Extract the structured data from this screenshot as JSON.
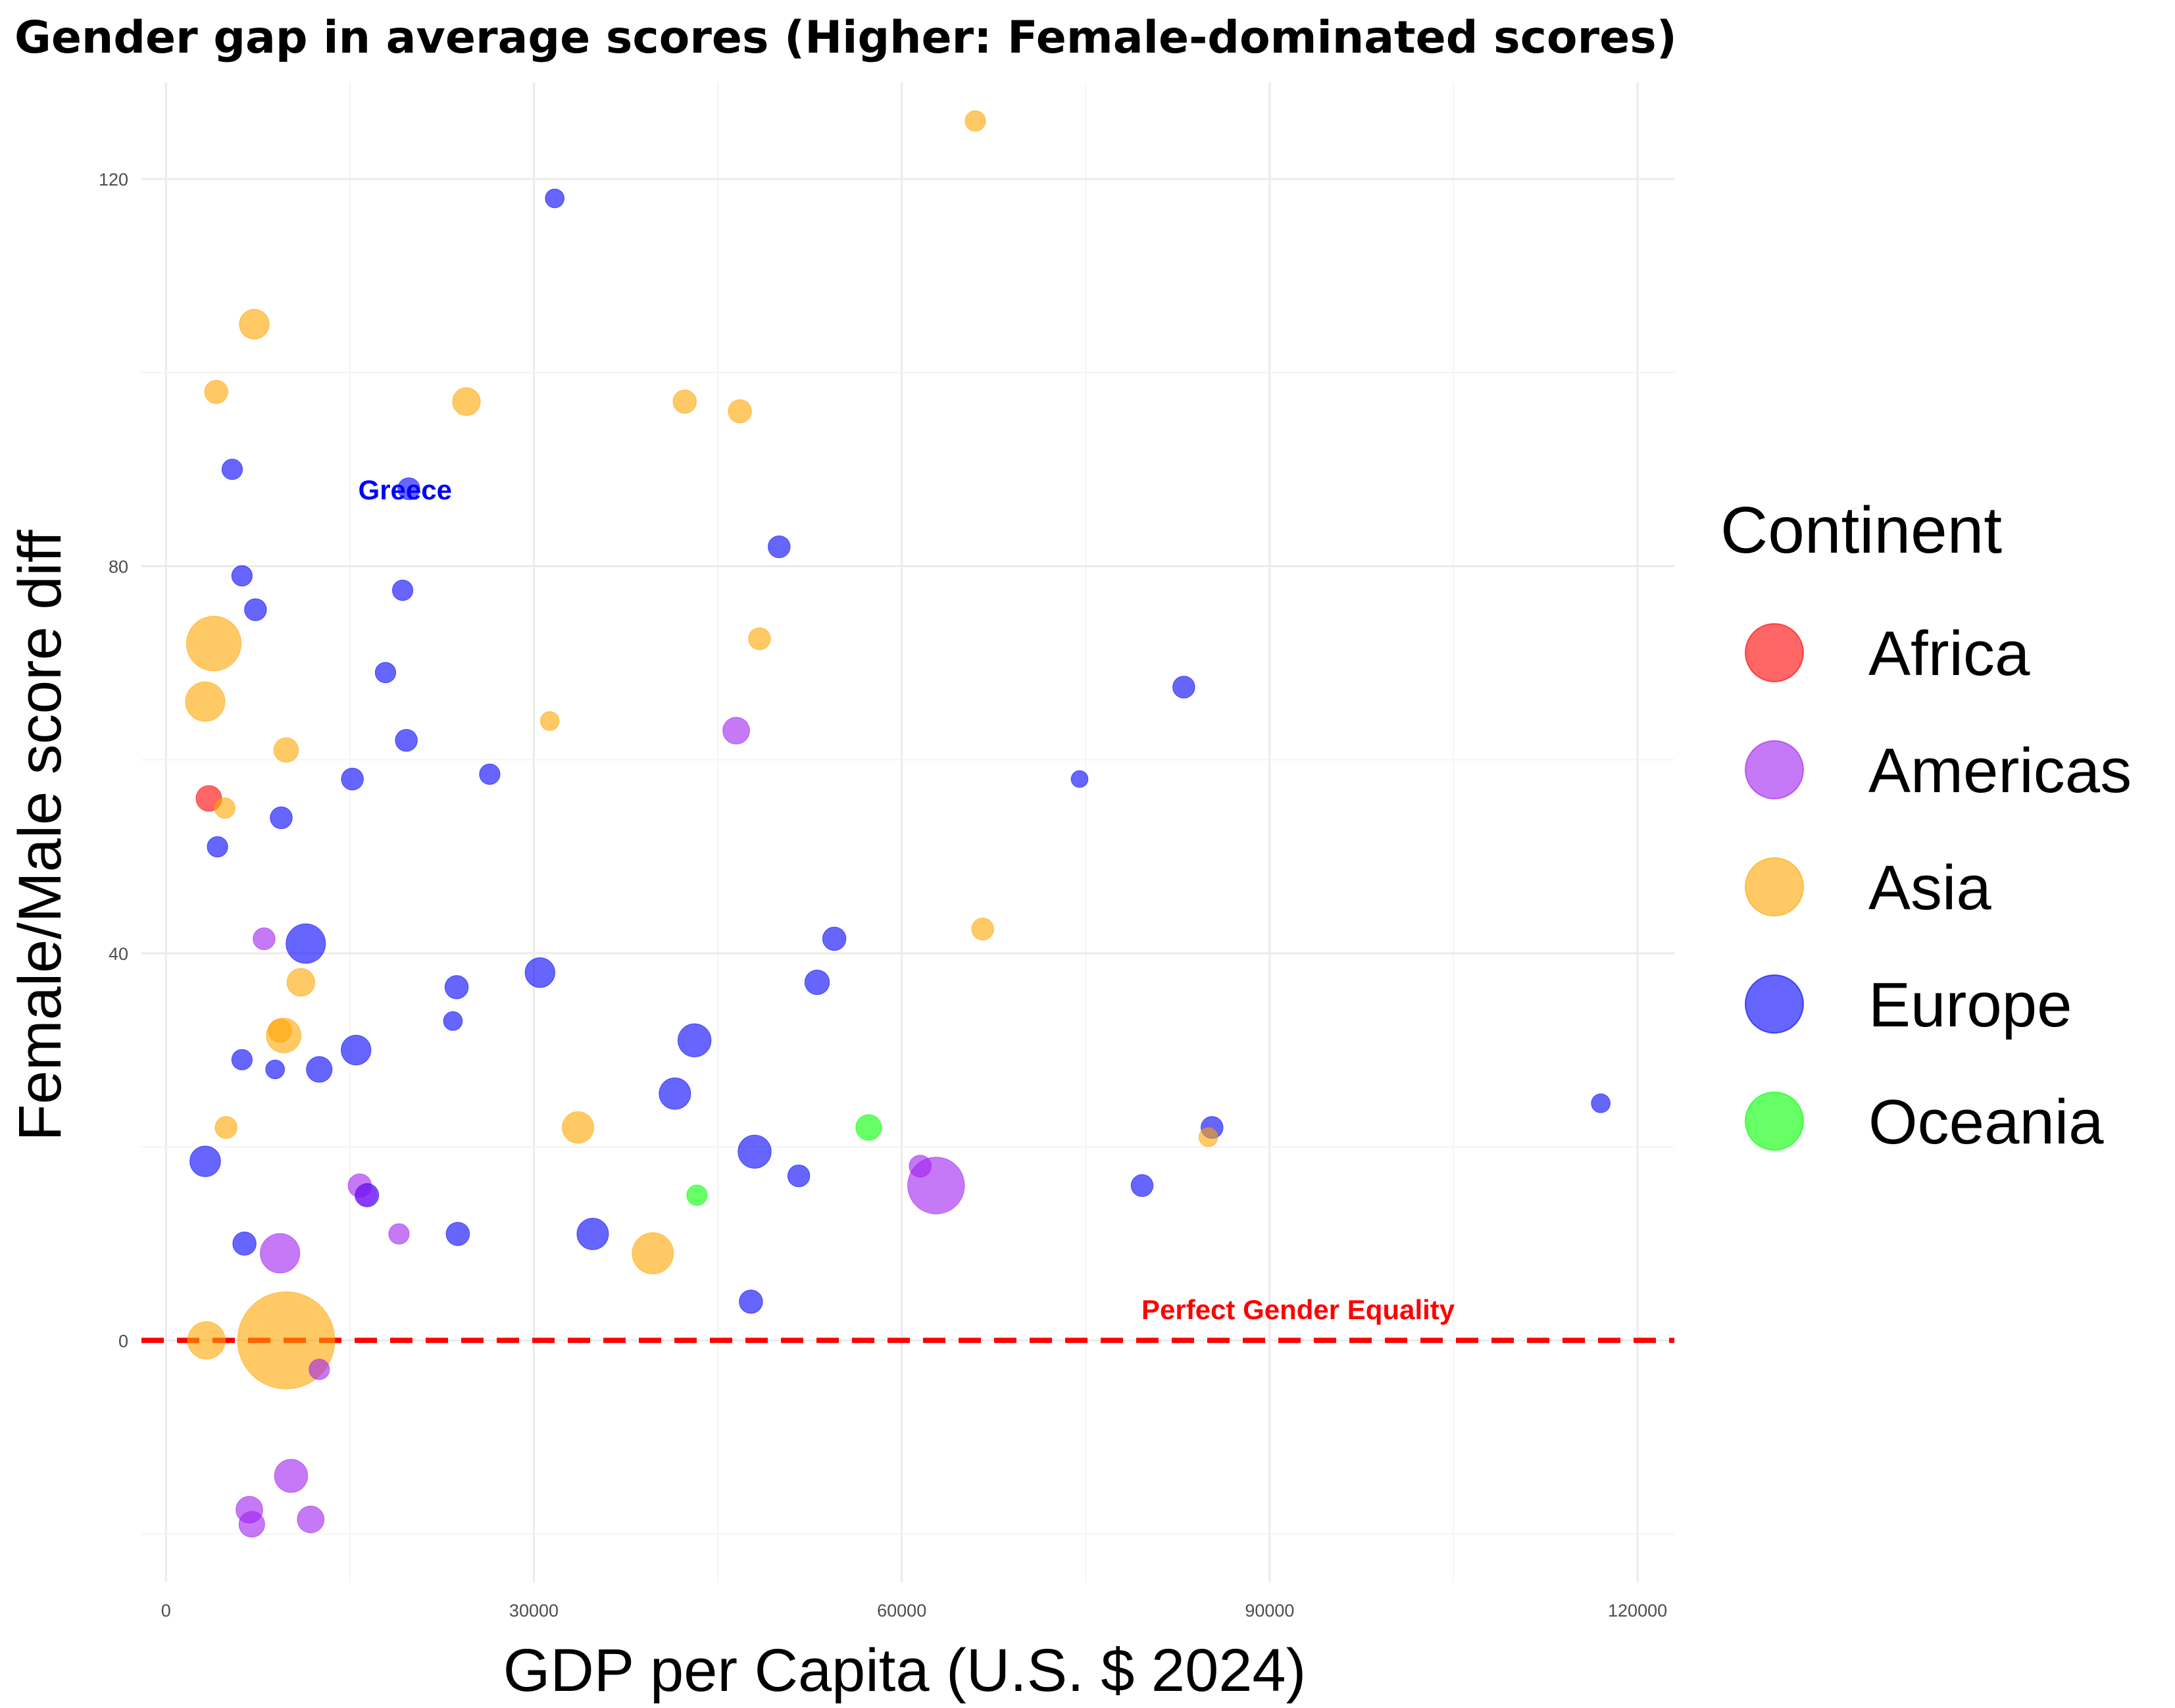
{
  "chart_data": {
    "type": "scatter",
    "title": "Gender gap in average scores (Higher: Female-dominated scores)",
    "xlabel": "GDP per Capita (U.S. $ 2024)",
    "ylabel": "Female/Male score diff",
    "xlim": [
      -2000,
      123000
    ],
    "ylim": [
      -25,
      130
    ],
    "x_ticks": [
      0,
      30000,
      60000,
      90000,
      120000
    ],
    "x_tick_labels": [
      "0",
      "30000",
      "60000",
      "90000",
      "120000"
    ],
    "y_ticks": [
      0,
      40,
      80,
      120
    ],
    "y_tick_labels": [
      "0",
      "40",
      "80",
      "120"
    ],
    "grid": true,
    "size_encoding": "bubble area, unlabeled",
    "legend": {
      "title": "Continent",
      "position": "right",
      "items": [
        {
          "label": "Africa",
          "color": "#ff0000"
        },
        {
          "label": "Americas",
          "color": "#a020f0"
        },
        {
          "label": "Asia",
          "color": "#ffa500"
        },
        {
          "label": "Europe",
          "color": "#0000ff"
        },
        {
          "label": "Oceania",
          "color": "#00ff00"
        }
      ]
    },
    "reference_line": {
      "y": 0,
      "label": "Perfect Gender Equality",
      "color": "#ff0000",
      "style": "dashed"
    },
    "annotations": [
      {
        "text": "Greece",
        "x": 19500,
        "y": 88,
        "color": "#0000ff"
      }
    ],
    "series": [
      {
        "name": "Africa",
        "color": "#ff0000",
        "points": [
          {
            "x": 3500,
            "y": 56,
            "s": 8
          }
        ]
      },
      {
        "name": "Americas",
        "color": "#a020f0",
        "points": [
          {
            "x": 8000,
            "y": 41.5,
            "s": 5
          },
          {
            "x": 15800,
            "y": 16,
            "s": 6
          },
          {
            "x": 16300,
            "y": 15,
            "s": 5
          },
          {
            "x": 19000,
            "y": 11,
            "s": 4
          },
          {
            "x": 9300,
            "y": 9,
            "s": 25
          },
          {
            "x": 12500,
            "y": -3,
            "s": 4
          },
          {
            "x": 10200,
            "y": -14,
            "s": 16
          },
          {
            "x": 6800,
            "y": -17.5,
            "s": 9
          },
          {
            "x": 7000,
            "y": -19,
            "s": 8
          },
          {
            "x": 11800,
            "y": -18.5,
            "s": 9
          },
          {
            "x": 46500,
            "y": 63,
            "s": 9
          },
          {
            "x": 61500,
            "y": 18,
            "s": 5
          },
          {
            "x": 62800,
            "y": 16,
            "s": 60
          }
        ]
      },
      {
        "name": "Asia",
        "color": "#ffa500",
        "points": [
          {
            "x": 66000,
            "y": 126,
            "s": 4
          },
          {
            "x": 7200,
            "y": 105,
            "s": 12
          },
          {
            "x": 4100,
            "y": 98,
            "s": 6
          },
          {
            "x": 24500,
            "y": 97,
            "s": 10
          },
          {
            "x": 42300,
            "y": 97,
            "s": 6
          },
          {
            "x": 46800,
            "y": 96,
            "s": 6
          },
          {
            "x": 3900,
            "y": 72,
            "s": 55
          },
          {
            "x": 48400,
            "y": 72.5,
            "s": 5
          },
          {
            "x": 3200,
            "y": 66,
            "s": 25
          },
          {
            "x": 31300,
            "y": 64,
            "s": 3
          },
          {
            "x": 9800,
            "y": 61,
            "s": 7
          },
          {
            "x": 4800,
            "y": 55,
            "s": 4
          },
          {
            "x": 66600,
            "y": 42.5,
            "s": 5
          },
          {
            "x": 11000,
            "y": 37,
            "s": 10
          },
          {
            "x": 9300,
            "y": 32,
            "s": 6
          },
          {
            "x": 9600,
            "y": 31.5,
            "s": 18
          },
          {
            "x": 4900,
            "y": 22,
            "s": 5
          },
          {
            "x": 33600,
            "y": 22,
            "s": 14
          },
          {
            "x": 85000,
            "y": 21,
            "s": 3
          },
          {
            "x": 39700,
            "y": 9,
            "s": 28
          },
          {
            "x": 3300,
            "y": 0,
            "s": 22
          },
          {
            "x": 9800,
            "y": 0,
            "s": 200
          }
        ]
      },
      {
        "name": "Europe",
        "color": "#0000ff",
        "points": [
          {
            "x": 31700,
            "y": 118,
            "s": 3
          },
          {
            "x": 5400,
            "y": 90,
            "s": 4
          },
          {
            "x": 19800,
            "y": 88,
            "s": 5
          },
          {
            "x": 50000,
            "y": 82,
            "s": 5
          },
          {
            "x": 6200,
            "y": 79,
            "s": 4
          },
          {
            "x": 19300,
            "y": 77.5,
            "s": 4
          },
          {
            "x": 7300,
            "y": 75.5,
            "s": 5
          },
          {
            "x": 17900,
            "y": 69,
            "s": 4
          },
          {
            "x": 83000,
            "y": 67.5,
            "s": 5
          },
          {
            "x": 19600,
            "y": 62,
            "s": 5
          },
          {
            "x": 15200,
            "y": 58,
            "s": 5
          },
          {
            "x": 26400,
            "y": 58.5,
            "s": 4
          },
          {
            "x": 74500,
            "y": 58,
            "s": 2
          },
          {
            "x": 9400,
            "y": 54,
            "s": 5
          },
          {
            "x": 4200,
            "y": 51,
            "s": 4
          },
          {
            "x": 54500,
            "y": 41.5,
            "s": 6
          },
          {
            "x": 11400,
            "y": 41,
            "s": 25
          },
          {
            "x": 30500,
            "y": 38,
            "s": 12
          },
          {
            "x": 23700,
            "y": 36.5,
            "s": 6
          },
          {
            "x": 53100,
            "y": 37,
            "s": 7
          },
          {
            "x": 23400,
            "y": 33,
            "s": 3
          },
          {
            "x": 43100,
            "y": 31,
            "s": 16
          },
          {
            "x": 15500,
            "y": 30,
            "s": 12
          },
          {
            "x": 6200,
            "y": 29,
            "s": 4
          },
          {
            "x": 8900,
            "y": 28,
            "s": 3
          },
          {
            "x": 12500,
            "y": 28,
            "s": 8
          },
          {
            "x": 41500,
            "y": 25.5,
            "s": 14
          },
          {
            "x": 117000,
            "y": 24.5,
            "s": 3
          },
          {
            "x": 85300,
            "y": 22,
            "s": 5
          },
          {
            "x": 3200,
            "y": 18.5,
            "s": 13
          },
          {
            "x": 48000,
            "y": 19.5,
            "s": 16
          },
          {
            "x": 51600,
            "y": 17,
            "s": 5
          },
          {
            "x": 79600,
            "y": 16,
            "s": 5
          },
          {
            "x": 16400,
            "y": 15,
            "s": 6
          },
          {
            "x": 6400,
            "y": 10,
            "s": 6
          },
          {
            "x": 23800,
            "y": 11,
            "s": 6
          },
          {
            "x": 34800,
            "y": 11,
            "s": 14
          },
          {
            "x": 47700,
            "y": 4,
            "s": 6
          }
        ]
      },
      {
        "name": "Oceania",
        "color": "#00ff00",
        "points": [
          {
            "x": 57300,
            "y": 22,
            "s": 8
          },
          {
            "x": 43300,
            "y": 15,
            "s": 4
          }
        ]
      }
    ]
  }
}
